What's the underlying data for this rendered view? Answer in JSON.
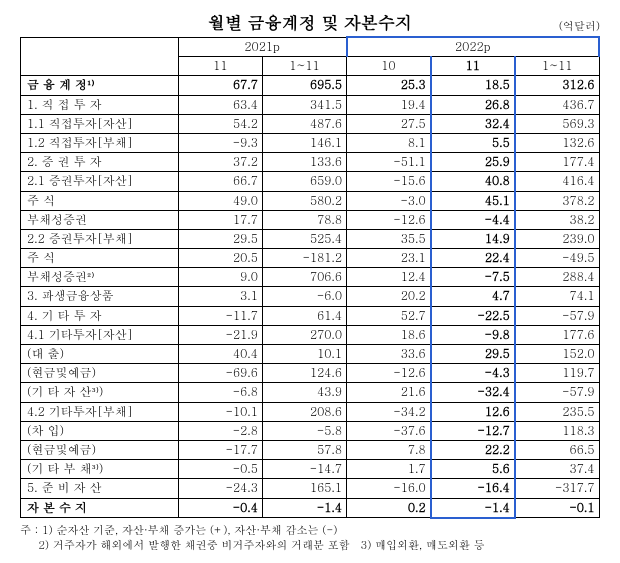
{
  "title": "월별 금융계정 및 자본수지",
  "unit": "(억달러)",
  "header": {
    "y2021": "2021p",
    "y2022": "2022p",
    "y2021_cols": [
      "11",
      "1~11"
    ],
    "y2022_cols": [
      "10",
      "11",
      "1~11"
    ]
  },
  "rows": [
    {
      "label": "금 융 계 정¹⁾",
      "bold": true,
      "indent": 0,
      "center": true,
      "v": [
        "67.7",
        "695.5",
        "25.3",
        "18.5",
        "312.6"
      ]
    },
    {
      "label": "1. 직 접 투 자",
      "indent": 1,
      "v": [
        "63.4",
        "341.5",
        "19.4",
        "26.8",
        "436.7"
      ]
    },
    {
      "label": "1.1 직접투자[자산]",
      "indent": 2,
      "v": [
        "54.2",
        "487.6",
        "27.5",
        "32.4",
        "569.3"
      ]
    },
    {
      "label": "1.2 직접투자[부채]",
      "indent": 2,
      "v": [
        "-9.3",
        "146.1",
        "8.1",
        "5.5",
        "132.6"
      ]
    },
    {
      "label": "2. 증 권 투 자",
      "indent": 1,
      "v": [
        "37.2",
        "133.6",
        "-51.1",
        "25.9",
        "177.4"
      ]
    },
    {
      "label": "2.1 증권투자[자산]",
      "indent": 2,
      "v": [
        "66.7",
        "659.0",
        "-15.6",
        "40.8",
        "416.4"
      ]
    },
    {
      "label": "주        식",
      "indent": 3,
      "v": [
        "49.0",
        "580.2",
        "-3.0",
        "45.1",
        "378.2"
      ]
    },
    {
      "label": "부채성증권",
      "indent": 3,
      "v": [
        "17.7",
        "78.8",
        "-12.6",
        "-4.4",
        "38.2"
      ]
    },
    {
      "label": "2.2 증권투자[부채]",
      "indent": 2,
      "v": [
        "29.5",
        "525.4",
        "35.5",
        "14.9",
        "239.0"
      ]
    },
    {
      "label": "주        식",
      "indent": 3,
      "v": [
        "20.5",
        "-181.2",
        "23.1",
        "22.4",
        "-49.5"
      ]
    },
    {
      "label": "부채성증권²⁾",
      "indent": 3,
      "v": [
        "9.0",
        "706.6",
        "12.4",
        "-7.5",
        "288.4"
      ]
    },
    {
      "label": "3. 파생금융상품",
      "indent": 1,
      "v": [
        "3.1",
        "-6.0",
        "20.2",
        "4.7",
        "74.1"
      ]
    },
    {
      "label": "4. 기 타 투 자",
      "indent": 1,
      "v": [
        "-11.7",
        "61.4",
        "52.7",
        "-22.5",
        "-57.9"
      ]
    },
    {
      "label": "4.1 기타투자[자산]",
      "indent": 2,
      "v": [
        "-21.9",
        "270.0",
        "18.6",
        "-9.8",
        "177.6"
      ]
    },
    {
      "label": "(대        출)",
      "indent": 3,
      "v": [
        "40.4",
        "10.1",
        "33.6",
        "29.5",
        "152.0"
      ]
    },
    {
      "label": "(현금및예금)",
      "indent": 3,
      "v": [
        "-69.6",
        "124.6",
        "-12.6",
        "-4.3",
        "119.7"
      ]
    },
    {
      "label": "(기 타 자 산³⁾)",
      "indent": 3,
      "v": [
        "-6.8",
        "43.9",
        "21.6",
        "-32.4",
        "-57.9"
      ]
    },
    {
      "label": "4.2 기타투자[부채]",
      "indent": 2,
      "v": [
        "-10.1",
        "208.6",
        "-34.2",
        "12.6",
        "235.5"
      ]
    },
    {
      "label": "(차        입)",
      "indent": 3,
      "v": [
        "-2.8",
        "-5.8",
        "-37.6",
        "-12.7",
        "118.3"
      ]
    },
    {
      "label": "(현금및예금)",
      "indent": 3,
      "v": [
        "-17.7",
        "57.8",
        "7.8",
        "22.2",
        "66.5"
      ]
    },
    {
      "label": "(기 타 부 채³⁾)",
      "indent": 3,
      "v": [
        "-0.5",
        "-14.7",
        "1.7",
        "5.6",
        "37.4"
      ]
    },
    {
      "label": "5. 준 비 자 산",
      "indent": 1,
      "v": [
        "-24.3",
        "165.1",
        "-16.0",
        "-16.4",
        "-317.7"
      ]
    },
    {
      "label": "자 본 수 지",
      "bold": true,
      "indent": 0,
      "center": true,
      "v": [
        "-0.4",
        "-1.4",
        "0.2",
        "-1.4",
        "-0.1"
      ]
    }
  ],
  "footnotes": {
    "f1": "주 : 1) 순자산 기준, 자산·부채 증가는 (+), 자산·부채 감소는 (-)",
    "f2": "2) 거주자가 해외에서 발행한 채권중 비거주자와의 거래분 포함",
    "f3": "3) 매입외환, 매도외환 등"
  },
  "style": {
    "background_color": "#ffffff",
    "text_color": "#000000",
    "highlight_border_color": "#2a5fd0",
    "title_fontsize": 17,
    "body_fontsize": 12,
    "footnote_fontsize": 11
  }
}
